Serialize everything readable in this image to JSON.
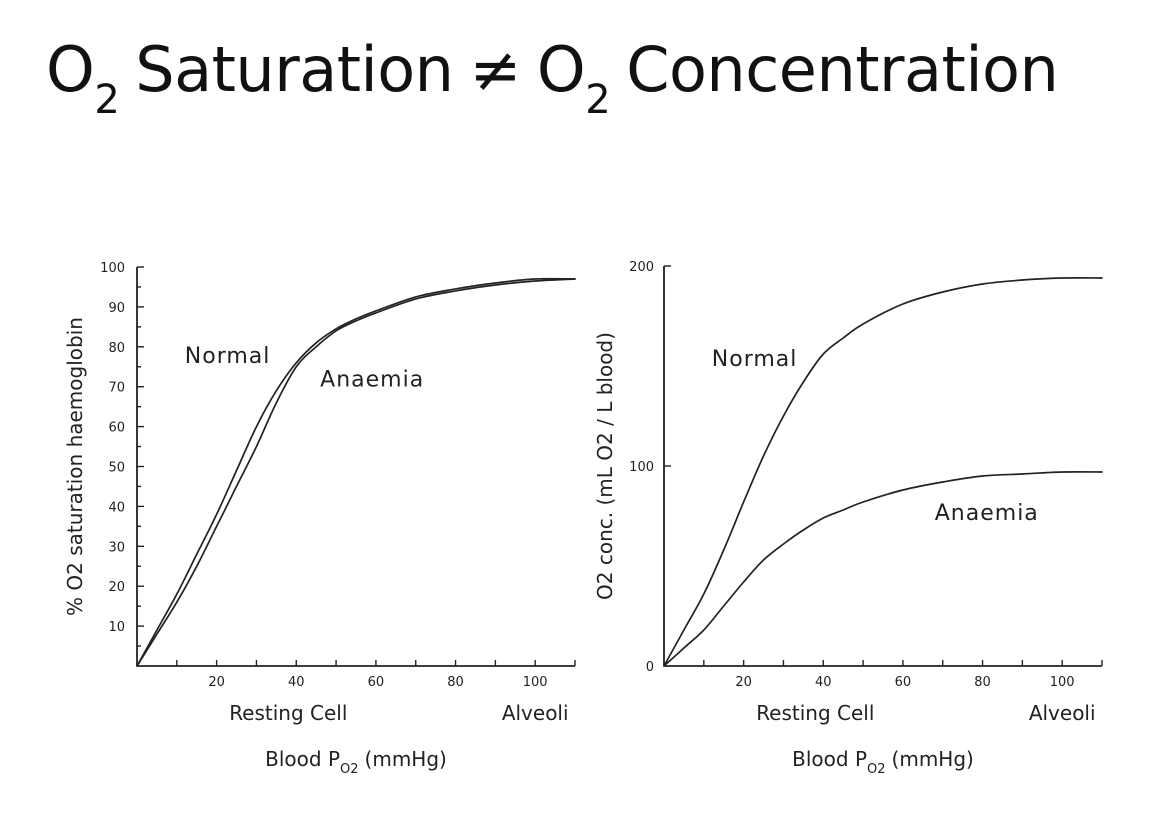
{
  "title": {
    "left_base": "O",
    "left_sub": "2",
    "left_word": "Saturation",
    "op": "≠",
    "right_base": "O",
    "right_sub": "2",
    "right_word": "Concentration"
  },
  "chart_data": [
    {
      "type": "line",
      "title": "",
      "xlabel": "Blood P",
      "xlabel_sub": "O2",
      "xlabel_unit": "(mmHg)",
      "ylabel": "% O2 saturation haemoglobin",
      "xlim": [
        0,
        110
      ],
      "ylim": [
        0,
        100
      ],
      "x_tick_labels": [
        20,
        40,
        60,
        80,
        100
      ],
      "y_tick_labels": [
        10,
        20,
        30,
        40,
        50,
        60,
        70,
        80,
        90,
        100
      ],
      "annotations": [
        {
          "text": "Resting Cell",
          "x": 38
        },
        {
          "text": "Alveoli",
          "x": 100
        }
      ],
      "series": [
        {
          "name": "Normal",
          "label_at": [
            12,
            76
          ],
          "x": [
            0,
            5,
            10,
            15,
            20,
            25,
            30,
            35,
            40,
            45,
            50,
            55,
            60,
            70,
            80,
            90,
            100,
            110
          ],
          "y": [
            0,
            9,
            18,
            28,
            38,
            49,
            60,
            69,
            76,
            81,
            84.5,
            87,
            89,
            92.5,
            94.5,
            96,
            97,
            97
          ]
        },
        {
          "name": "Anaemia",
          "label_at": [
            46,
            70
          ],
          "x": [
            0,
            5,
            10,
            15,
            20,
            25,
            30,
            35,
            40,
            45,
            50,
            55,
            60,
            70,
            80,
            90,
            100,
            110
          ],
          "y": [
            0,
            8,
            16,
            25,
            35,
            45,
            55,
            66,
            75,
            80,
            84,
            86.5,
            88.5,
            92,
            94,
            95.5,
            96.5,
            97
          ]
        }
      ]
    },
    {
      "type": "line",
      "title": "",
      "xlabel": "Blood P",
      "xlabel_sub": "O2",
      "xlabel_unit": "(mmHg)",
      "ylabel": "O2 conc. (mL O2 / L blood)",
      "xlim": [
        0,
        110
      ],
      "ylim": [
        0,
        200
      ],
      "x_tick_labels": [
        20,
        40,
        60,
        80,
        100
      ],
      "y_tick_labels": [
        0,
        100,
        200
      ],
      "annotations": [
        {
          "text": "Resting Cell",
          "x": 38
        },
        {
          "text": "Alveoli",
          "x": 100
        }
      ],
      "series": [
        {
          "name": "Normal",
          "label_at": [
            12,
            150
          ],
          "x": [
            0,
            5,
            10,
            15,
            20,
            25,
            30,
            35,
            40,
            45,
            50,
            60,
            70,
            80,
            90,
            100,
            110
          ],
          "y": [
            0,
            18,
            36,
            58,
            82,
            105,
            125,
            142,
            156,
            164,
            171,
            181,
            187,
            191,
            193,
            194,
            194
          ]
        },
        {
          "name": "Anaemia",
          "label_at": [
            68,
            73
          ],
          "x": [
            0,
            5,
            10,
            15,
            20,
            25,
            30,
            35,
            40,
            45,
            50,
            60,
            70,
            80,
            90,
            100,
            110
          ],
          "y": [
            0,
            9,
            18,
            30,
            42,
            53,
            61,
            68,
            74,
            78,
            82,
            88,
            92,
            95,
            96,
            97,
            97
          ]
        }
      ]
    }
  ]
}
